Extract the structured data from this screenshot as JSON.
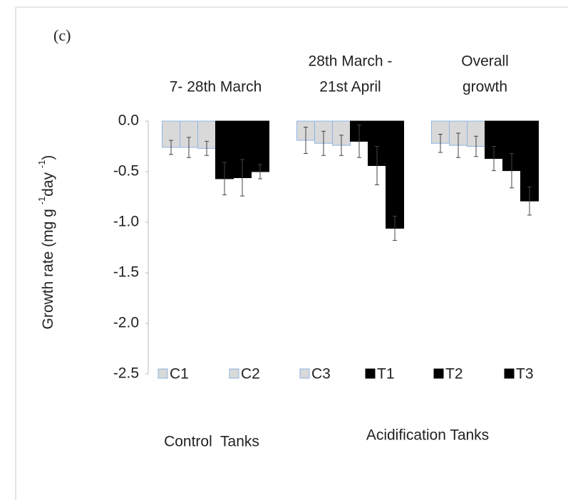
{
  "chart_data": {
    "type": "bar",
    "panel_label": "(c)",
    "y_label": [
      "Growth rate (mg g ",
      "-1",
      "day ",
      "-1",
      ")"
    ],
    "categories": [
      [
        "7- 28th March"
      ],
      [
        "28th March -",
        "21st April"
      ],
      [
        "Overall",
        "growth"
      ]
    ],
    "series": [
      {
        "name": "C1",
        "color": "#d9d9d9",
        "edge": "#8eb4e3",
        "values": [
          -0.26,
          -0.19,
          -0.22
        ],
        "errors": [
          0.07,
          0.13,
          0.09
        ]
      },
      {
        "name": "C2",
        "color": "#d9d9d9",
        "edge": "#8eb4e3",
        "values": [
          -0.26,
          -0.22,
          -0.24
        ],
        "errors": [
          0.1,
          0.12,
          0.12
        ]
      },
      {
        "name": "C3",
        "color": "#d9d9d9",
        "edge": "#8eb4e3",
        "values": [
          -0.27,
          -0.24,
          -0.25
        ],
        "errors": [
          0.07,
          0.1,
          0.1
        ]
      },
      {
        "name": "T1",
        "color": "#000000",
        "edge": "#000000",
        "values": [
          -0.57,
          -0.2,
          -0.37
        ],
        "errors": [
          0.16,
          0.16,
          0.12
        ]
      },
      {
        "name": "T2",
        "color": "#000000",
        "edge": "#000000",
        "values": [
          -0.56,
          -0.44,
          -0.49
        ],
        "errors": [
          0.18,
          0.19,
          0.17
        ]
      },
      {
        "name": "T3",
        "color": "#000000",
        "edge": "#000000",
        "values": [
          -0.5,
          -1.06,
          -0.79
        ],
        "errors": [
          0.07,
          0.12,
          0.14
        ]
      }
    ],
    "ylim": [
      -2.5,
      0
    ],
    "yticks": [
      {
        "value": 0,
        "label": "0.0"
      },
      -0.5,
      {
        "value": -1,
        "label": "-1.0"
      },
      -1.5,
      {
        "value": -2,
        "label": "-2.0"
      },
      -2.5
    ],
    "annotations": [
      "Control  Tanks",
      "Acidification Tanks"
    ]
  }
}
